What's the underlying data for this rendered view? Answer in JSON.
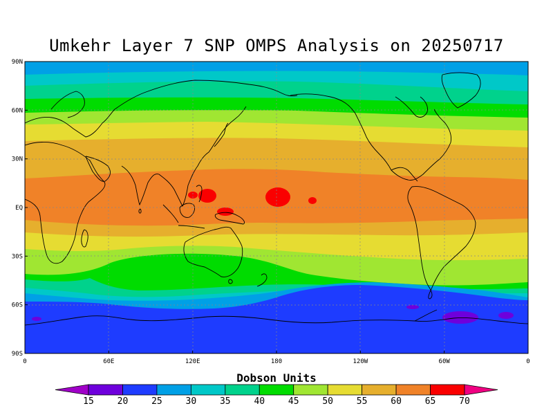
{
  "title": "Umkehr Layer 7 SNP OMPS Analysis on 20250717",
  "map": {
    "lat_labels": [
      "90N",
      "60N",
      "30N",
      "EQ",
      "30S",
      "60S",
      "90S"
    ],
    "lon_labels": [
      "0",
      "60E",
      "120E",
      "180",
      "120W",
      "60W",
      "0"
    ],
    "lat_values": [
      90,
      60,
      30,
      0,
      -30,
      -60,
      -90
    ],
    "lon_values": [
      0,
      60,
      120,
      180,
      240,
      300,
      360
    ]
  },
  "colorbar": {
    "title": "Dobson Units",
    "levels": [
      "15",
      "20",
      "25",
      "30",
      "35",
      "40",
      "45",
      "50",
      "55",
      "60",
      "65",
      "70"
    ],
    "colors": [
      "#a000c8",
      "#6e00dc",
      "#1e3cff",
      "#00a0e6",
      "#00c8c8",
      "#00d28c",
      "#00dc00",
      "#a0e632",
      "#e6dc32",
      "#e6af2d",
      "#f08228",
      "#fa0000",
      "#f00082"
    ]
  },
  "chart_data": {
    "type": "heatmap",
    "title": "Umkehr Layer 7 SNP OMPS Analysis on 20250717",
    "units": "Dobson Units",
    "x_range": [
      0,
      360
    ],
    "y_range": [
      -90,
      90
    ],
    "zonal_bands": [
      {
        "lat_from": 90,
        "lat_to": 80,
        "value_range": "25-30"
      },
      {
        "lat_from": 80,
        "lat_to": 72,
        "value_range": "30-35"
      },
      {
        "lat_from": 72,
        "lat_to": 64,
        "value_range": "35-40"
      },
      {
        "lat_from": 64,
        "lat_to": 56,
        "value_range": "40-45"
      },
      {
        "lat_from": 56,
        "lat_to": 47,
        "value_range": "45-50"
      },
      {
        "lat_from": 47,
        "lat_to": 36,
        "value_range": "50-55"
      },
      {
        "lat_from": 36,
        "lat_to": 24,
        "value_range": "55-60"
      },
      {
        "lat_from": 24,
        "lat_to": -12,
        "value_range": "60-65"
      },
      {
        "lat_from": -12,
        "lat_to": -20,
        "value_range": "55-60"
      },
      {
        "lat_from": -20,
        "lat_to": -26,
        "value_range": "50-55"
      },
      {
        "lat_from": -26,
        "lat_to": -36,
        "value_range": "45-50"
      },
      {
        "lat_from": -36,
        "lat_to": -48,
        "value_range": "40-45"
      },
      {
        "lat_from": -48,
        "lat_to": -54,
        "value_range": "35-40"
      },
      {
        "lat_from": -54,
        "lat_to": -60,
        "value_range": "30-35"
      },
      {
        "lat_from": -60,
        "lat_to": -90,
        "value_range": "20-25"
      }
    ],
    "maxima_over_65": [
      {
        "lon": 135,
        "lat": 12
      },
      {
        "lon": 148,
        "lat": -3
      },
      {
        "lon": 181,
        "lat": 10
      },
      {
        "lon": 205,
        "lat": 7
      }
    ],
    "minima_under_20": [
      {
        "lon": 310,
        "lat": -72
      },
      {
        "lon": 343,
        "lat": -69
      },
      {
        "lon": 7,
        "lat": -74
      },
      {
        "lon": 278,
        "lat": -62
      }
    ]
  }
}
